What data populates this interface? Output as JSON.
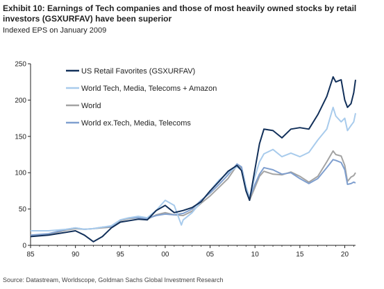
{
  "title": "Exhibit 10: Earnings of Tech companies and those of most heavily owned stocks by retail investors (GSXURFAV) have been superior",
  "subtitle": "Indexed EPS on January 2009",
  "source": "Source: Datastream, Worldscope, Goldman Sachs Global Investment Research",
  "chart_data": {
    "type": "line",
    "title": "Exhibit 10: Earnings of Tech companies and those of most heavily owned stocks by retail investors (GSXURFAV) have been superior",
    "subtitle": "Indexed EPS on January 2009",
    "xlabel": "",
    "ylabel": "",
    "xlim": [
      1985,
      2021.2
    ],
    "ylim": [
      0,
      250
    ],
    "x_ticks": [
      "85",
      "90",
      "95",
      "00",
      "05",
      "10",
      "15",
      "20"
    ],
    "y_ticks": [
      "0",
      "50",
      "100",
      "150",
      "200",
      "250"
    ],
    "grid": false,
    "legend_position": "top-left",
    "series": [
      {
        "name": "World",
        "color": "#a3a3a3",
        "x": [
          1985,
          1987,
          1989,
          1990,
          1991,
          1992,
          1993,
          1994,
          1995,
          1996,
          1997,
          1998,
          1999,
          2000,
          2001,
          2002,
          2003,
          2004,
          2005,
          2006,
          2007,
          2008,
          2008.5,
          2009,
          2009.4,
          2010,
          2010.5,
          2011,
          2012,
          2013,
          2014,
          2015,
          2016,
          2017,
          2018,
          2018.7,
          2019,
          2019.6,
          2020,
          2020.3,
          2020.7,
          2021,
          2021.2
        ],
        "y": [
          13,
          15,
          21,
          23,
          22,
          23,
          24,
          25,
          34,
          37,
          38,
          36,
          42,
          45,
          42,
          41,
          47,
          58,
          68,
          80,
          92,
          110,
          106,
          75,
          62,
          80,
          95,
          102,
          98,
          97,
          101,
          95,
          87,
          95,
          115,
          130,
          125,
          123,
          110,
          88,
          94,
          96,
          100
        ]
      },
      {
        "name": "World ex.Tech, Media, Telecoms",
        "color": "#7f9fcf",
        "x": [
          1985,
          1987,
          1989,
          1990,
          1991,
          1992,
          1993,
          1994,
          1995,
          1996,
          1997,
          1998,
          1999,
          2000,
          2001,
          2002,
          2003,
          2004,
          2005,
          2006,
          2007,
          2008,
          2008.5,
          2009,
          2009.4,
          2010,
          2010.5,
          2011,
          2012,
          2013,
          2014,
          2015,
          2016,
          2017,
          2018,
          2018.7,
          2019,
          2019.6,
          2020,
          2020.3,
          2020.7,
          2021,
          2021.2
        ],
        "y": [
          14,
          16,
          22,
          24,
          22,
          23,
          25,
          26,
          35,
          38,
          38,
          37,
          41,
          43,
          42,
          44,
          50,
          62,
          72,
          84,
          97,
          112,
          108,
          80,
          66,
          84,
          98,
          107,
          104,
          98,
          100,
          92,
          85,
          92,
          107,
          118,
          117,
          114,
          104,
          84,
          85,
          87,
          86
        ]
      },
      {
        "name": "World Tech, Media, Telecoms + Amazon",
        "color": "#a8cbec",
        "x": [
          1985,
          1987,
          1989,
          1990,
          1991,
          1992,
          1993,
          1994,
          1995,
          1996,
          1997,
          1998,
          1999,
          2000,
          2001,
          2001.8,
          2002,
          2003,
          2004,
          2005,
          2006,
          2007,
          2008,
          2008.5,
          2009,
          2009.4,
          2010,
          2010.5,
          2011,
          2012,
          2013,
          2014,
          2015,
          2016,
          2017,
          2018,
          2018.7,
          2019,
          2019.6,
          2020,
          2020.3,
          2020.7,
          2021,
          2021.2
        ],
        "y": [
          20,
          20,
          22,
          24,
          22,
          23,
          25,
          27,
          35,
          38,
          40,
          38,
          48,
          62,
          55,
          28,
          35,
          45,
          60,
          75,
          90,
          100,
          108,
          104,
          80,
          65,
          95,
          115,
          126,
          132,
          122,
          127,
          122,
          128,
          145,
          160,
          190,
          178,
          170,
          175,
          158,
          165,
          170,
          182
        ]
      },
      {
        "name": "US Retail Favorites (GSXURFAV)",
        "color": "#12305a",
        "x": [
          1985,
          1987,
          1989,
          1990,
          1991,
          1992,
          1993,
          1994,
          1995,
          1996,
          1997,
          1998,
          1999,
          2000,
          2001,
          2002,
          2003,
          2004,
          2005,
          2006,
          2007,
          2008,
          2008.5,
          2009,
          2009.4,
          2010,
          2010.5,
          2011,
          2012,
          2013,
          2014,
          2015,
          2016,
          2017,
          2018,
          2018.7,
          2019,
          2019.6,
          2020,
          2020.3,
          2020.7,
          2021,
          2021.2
        ],
        "y": [
          12,
          14,
          18,
          20,
          14,
          5,
          12,
          24,
          32,
          34,
          36,
          35,
          48,
          55,
          45,
          48,
          52,
          60,
          75,
          88,
          102,
          110,
          103,
          75,
          62,
          105,
          140,
          160,
          158,
          148,
          160,
          162,
          160,
          180,
          205,
          232,
          225,
          228,
          200,
          190,
          195,
          210,
          228
        ]
      }
    ],
    "legend_order": [
      "US Retail Favorites (GSXURFAV)",
      "World Tech, Media, Telecoms + Amazon",
      "World",
      "World ex.Tech, Media, Telecoms"
    ]
  }
}
